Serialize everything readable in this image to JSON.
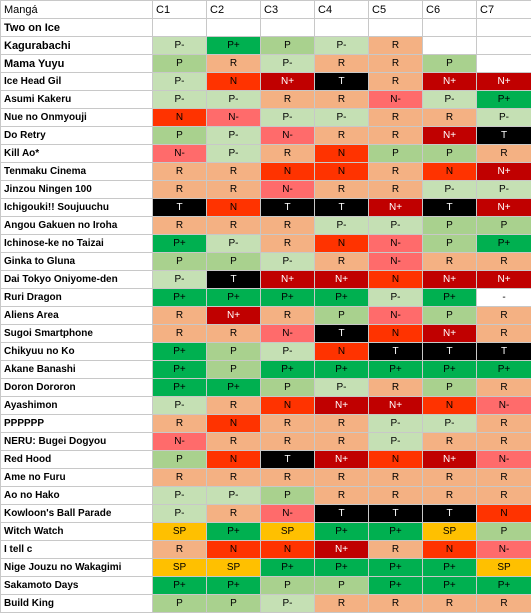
{
  "table": {
    "headers": [
      "Mangá",
      "C1",
      "C2",
      "C3",
      "C4",
      "C5",
      "C6",
      "C7"
    ],
    "rows": [
      {
        "name": "Two on Ice",
        "big": true,
        "cells": [
          "",
          "",
          "",
          "",
          "",
          "",
          ""
        ]
      },
      {
        "name": "Kagurabachi",
        "big": true,
        "cells": [
          "P-",
          "P+",
          "P",
          "P-",
          "R",
          "",
          ""
        ]
      },
      {
        "name": "Mama Yuyu",
        "big": true,
        "cells": [
          "P",
          "R",
          "P-",
          "R",
          "R",
          "P",
          ""
        ]
      },
      {
        "name": "Ice Head Gil",
        "cells": [
          "P-",
          "N",
          "N+",
          "T",
          "R",
          "N+",
          "N+"
        ]
      },
      {
        "name": "Asumi Kakeru",
        "cells": [
          "P-",
          "P-",
          "R",
          "R",
          "N-",
          "P-",
          "P+"
        ]
      },
      {
        "name": "Nue no Onmyouji",
        "cells": [
          "N",
          "N-",
          "P-",
          "P-",
          "R",
          "R",
          "P-"
        ]
      },
      {
        "name": "Do Retry",
        "cells": [
          "P",
          "P-",
          "N-",
          "R",
          "R",
          "N+",
          "T"
        ]
      },
      {
        "name": "Kill Ao*",
        "cells": [
          "N-",
          "P-",
          "R",
          "N",
          "P",
          "P",
          "R"
        ]
      },
      {
        "name": "Tenmaku Cinema",
        "cells": [
          "R",
          "R",
          "N",
          "N",
          "R",
          "N",
          "N+"
        ]
      },
      {
        "name": "Jinzou Ningen 100",
        "cells": [
          "R",
          "R",
          "N-",
          "R",
          "R",
          "P-",
          "P-"
        ]
      },
      {
        "name": "Ichigouki!! Soujuuchu",
        "cells": [
          "T",
          "N",
          "T",
          "T",
          "N+",
          "T",
          "N+"
        ]
      },
      {
        "name": "Angou Gakuen no Iroha",
        "cells": [
          "R",
          "R",
          "R",
          "P-",
          "P-",
          "P",
          "P"
        ]
      },
      {
        "name": "Ichinose-ke no Taizai",
        "cells": [
          "P+",
          "P-",
          "R",
          "N",
          "N-",
          "P",
          "P+"
        ]
      },
      {
        "name": "Ginka to Gluna",
        "cells": [
          "P",
          "P",
          "P-",
          "R",
          "N-",
          "R",
          "R"
        ]
      },
      {
        "name": "Dai Tokyo Oniyome-den",
        "cells": [
          "P-",
          "T",
          "N+",
          "N+",
          "N",
          "N+",
          "N+"
        ]
      },
      {
        "name": "Ruri Dragon",
        "cells": [
          "P+",
          "P+",
          "P+",
          "P+",
          "P-",
          "P+",
          "-"
        ]
      },
      {
        "name": "Aliens Area",
        "cells": [
          "R",
          "N+",
          "R",
          "P",
          "N-",
          "P",
          "R"
        ]
      },
      {
        "name": "Sugoi Smartphone",
        "cells": [
          "R",
          "R",
          "N-",
          "T",
          "N",
          "N+",
          "R"
        ]
      },
      {
        "name": "Chikyuu no Ko",
        "cells": [
          "P+",
          "P",
          "P-",
          "N",
          "T",
          "T",
          "T"
        ]
      },
      {
        "name": "Akane Banashi",
        "cells": [
          "P+",
          "P",
          "P+",
          "P+",
          "P+",
          "P+",
          "P+"
        ]
      },
      {
        "name": "Doron Dororon",
        "cells": [
          "P+",
          "P+",
          "P",
          "P-",
          "R",
          "P",
          "R"
        ]
      },
      {
        "name": "Ayashimon",
        "cells": [
          "P-",
          "R",
          "N",
          "N+",
          "N+",
          "N",
          "N-"
        ]
      },
      {
        "name": "PPPPPP",
        "cells": [
          "R",
          "N",
          "R",
          "R",
          "P-",
          "P-",
          "R"
        ]
      },
      {
        "name": "NERU: Bugei Dogyou",
        "cells": [
          "N-",
          "R",
          "R",
          "R",
          "P-",
          "R",
          "R"
        ]
      },
      {
        "name": "Red Hood",
        "cells": [
          "P",
          "N",
          "T",
          "N+",
          "N",
          "N+",
          "N-"
        ]
      },
      {
        "name": "Ame no Furu",
        "cells": [
          "R",
          "R",
          "R",
          "R",
          "R",
          "R",
          "R"
        ]
      },
      {
        "name": "Ao no Hako",
        "cells": [
          "P-",
          "P-",
          "P",
          "R",
          "R",
          "R",
          "R"
        ]
      },
      {
        "name": "Kowloon's Ball Parade",
        "cells": [
          "P-",
          "R",
          "N-",
          "T",
          "T",
          "T",
          "N"
        ]
      },
      {
        "name": "Witch Watch",
        "cells": [
          "SP",
          "P+",
          "SP",
          "P+",
          "P+",
          "SP",
          "P"
        ]
      },
      {
        "name": "I tell c",
        "cells": [
          "R",
          "N",
          "N",
          "N+",
          "R",
          "N",
          "N-"
        ]
      },
      {
        "name": "Nige Jouzu no Wakagimi",
        "cells": [
          "SP",
          "SP",
          "P+",
          "P+",
          "P+",
          "P+",
          "SP"
        ]
      },
      {
        "name": "Sakamoto Days",
        "cells": [
          "P+",
          "P+",
          "P",
          "P",
          "P+",
          "P+",
          "P+"
        ]
      },
      {
        "name": "Build King",
        "cells": [
          "P",
          "P",
          "P-",
          "R",
          "R",
          "R",
          "R"
        ]
      }
    ]
  },
  "colors": {
    "P": "#a9d18e",
    "P+": "#00b050",
    "P-": "#c5e0b4",
    "R": "#f4b183",
    "N": "#ff3300",
    "N+": "#c00000",
    "N-": "#ff6b6b",
    "T": "#000000",
    "SP": "#ffc000"
  }
}
